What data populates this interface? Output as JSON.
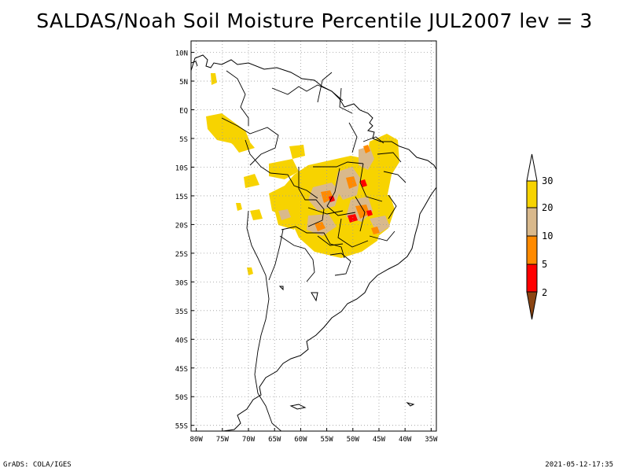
{
  "title": "SALDAS/Noah Soil Moisture Percentile JUL2007 lev = 3",
  "footer": {
    "left": "GrADS: COLA/IGES",
    "right": "2021-05-12-17:35"
  },
  "map": {
    "region": "South America",
    "lat_labels": [
      "10N",
      "5N",
      "EQ",
      "5S",
      "10S",
      "15S",
      "20S",
      "25S",
      "30S",
      "35S",
      "40S",
      "45S",
      "50S",
      "55S"
    ],
    "lon_labels": [
      "80W",
      "75W",
      "70W",
      "65W",
      "60W",
      "55W",
      "50W",
      "45W",
      "40W",
      "35W"
    ],
    "grid": true,
    "grid_style": "dotted"
  },
  "legend": {
    "placement": "right",
    "tick_labels": [
      "30",
      "20",
      "10",
      "5",
      "2"
    ],
    "colors": {
      "above_30": "#ffffff",
      "20_30": "#f7d300",
      "10_20": "#d9b98c",
      "5_10": "#ff8a00",
      "2_5": "#ff0000",
      "below_2": "#8b4513"
    }
  },
  "colors": {
    "coastline": "#000000",
    "grid": "#9a9a9a",
    "background": "#ffffff"
  }
}
